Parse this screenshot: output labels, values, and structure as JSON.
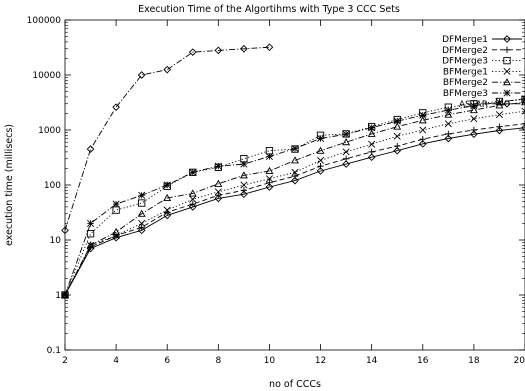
{
  "chart_data": {
    "type": "line",
    "title": "Execution Time of the Algortihms with Type 3 CCC Sets",
    "xlabel": "no of CCCs",
    "ylabel": "execution time (millisecs)",
    "xlim": [
      2,
      20
    ],
    "ylim": [
      0.1,
      100000
    ],
    "yscale": "log",
    "grid": false,
    "legend_position": "top-right",
    "x_ticks": [
      "2",
      "4",
      "6",
      "8",
      "10",
      "12",
      "14",
      "16",
      "18",
      "20"
    ],
    "y_ticks": [
      "0.1",
      "1",
      "10",
      "100",
      "1000",
      "10000",
      "100000"
    ],
    "series": [
      {
        "name": "DFMerge1",
        "style": "solid",
        "marker": "diamond",
        "x": [
          2,
          3,
          4,
          5,
          6,
          7,
          8,
          9,
          10,
          11,
          12,
          13,
          14,
          15,
          16,
          17,
          18,
          19,
          20
        ],
        "y": [
          1,
          7,
          11,
          15,
          28,
          40,
          57,
          68,
          92,
          120,
          180,
          240,
          320,
          420,
          560,
          700,
          840,
          980,
          1100
        ]
      },
      {
        "name": "DFMerge2",
        "style": "dashed",
        "marker": "plus",
        "x": [
          2,
          3,
          4,
          5,
          6,
          7,
          8,
          9,
          10,
          11,
          12,
          13,
          14,
          15,
          16,
          17,
          18,
          19,
          20
        ],
        "y": [
          1,
          7.5,
          12,
          17,
          32,
          45,
          65,
          80,
          110,
          145,
          220,
          300,
          400,
          510,
          680,
          850,
          1000,
          1150,
          1300
        ]
      },
      {
        "name": "DFMerge3",
        "style": "dotted",
        "marker": "square",
        "x": [
          2,
          3,
          4,
          5,
          6,
          7,
          8,
          9,
          10,
          11,
          12,
          13,
          14,
          15,
          16,
          17,
          18,
          19,
          20
        ],
        "y": [
          1,
          13,
          35,
          47,
          95,
          170,
          210,
          300,
          420,
          450,
          800,
          850,
          1150,
          1550,
          2050,
          2600,
          3000,
          3300,
          3600
        ]
      },
      {
        "name": "BFMerge1",
        "style": "dotted",
        "marker": "cross",
        "x": [
          2,
          3,
          4,
          5,
          6,
          7,
          8,
          9,
          10,
          11,
          12,
          13,
          14,
          15,
          16,
          17,
          18,
          19,
          20
        ],
        "y": [
          1,
          8,
          12,
          20,
          35,
          55,
          75,
          100,
          130,
          170,
          280,
          400,
          550,
          770,
          1000,
          1300,
          1600,
          1900,
          2200
        ]
      },
      {
        "name": "BFMerge2",
        "style": "dashdot",
        "marker": "triangle",
        "x": [
          2,
          3,
          4,
          5,
          6,
          7,
          8,
          9,
          10,
          11,
          12,
          13,
          14,
          15,
          16,
          17,
          18,
          19,
          20
        ],
        "y": [
          1,
          8,
          14,
          30,
          58,
          70,
          105,
          150,
          180,
          280,
          420,
          600,
          850,
          1150,
          1500,
          1900,
          2300,
          2800,
          3200
        ]
      },
      {
        "name": "BFMerge3",
        "style": "dashdot",
        "marker": "star",
        "x": [
          2,
          3,
          4,
          5,
          6,
          7,
          8,
          9,
          10,
          11,
          12,
          13,
          14,
          15,
          16,
          17,
          18,
          19,
          20
        ],
        "y": [
          1,
          20,
          45,
          65,
          100,
          170,
          220,
          240,
          330,
          460,
          700,
          840,
          1100,
          1450,
          1850,
          2300,
          2750,
          3200,
          3700
        ]
      },
      {
        "name": "ASTAR",
        "style": "dashdot",
        "marker": "diamond",
        "x": [
          2,
          3,
          4,
          5,
          6,
          7,
          8,
          9,
          10
        ],
        "y": [
          15,
          450,
          2600,
          10000,
          12500,
          26000,
          28000,
          30000,
          32000
        ]
      }
    ]
  }
}
